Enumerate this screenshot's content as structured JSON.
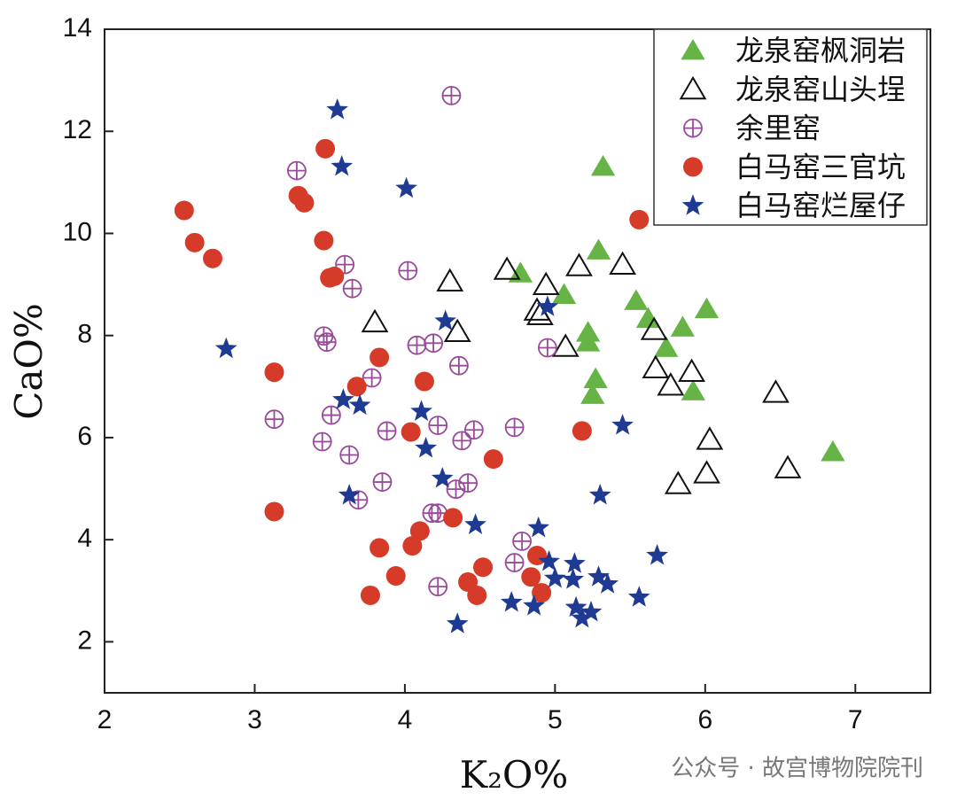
{
  "chart_data": {
    "type": "scatter",
    "xlabel": "K₂O%",
    "ylabel": "CaO%",
    "watermark": "公众号 · 故宫博物院院刊",
    "xlim": [
      2,
      7.5
    ],
    "xticks": [
      2,
      3,
      4,
      5,
      6,
      7
    ],
    "ylim": [
      1,
      14
    ],
    "yticks": [
      2,
      4,
      6,
      8,
      10,
      12,
      14
    ],
    "legend": "upper right",
    "series": [
      {
        "name": "龙泉窑枫洞岩",
        "color": "#67b446",
        "marker": "triangle",
        "x": [
          5.32,
          5.29,
          4.77,
          5.06,
          5.54,
          5.62,
          6.01,
          5.85,
          5.22,
          5.22,
          5.74,
          5.27,
          5.25,
          5.92,
          6.85
        ],
        "values": [
          11.31,
          9.67,
          9.22,
          8.8,
          8.68,
          8.33,
          8.52,
          8.16,
          8.06,
          7.87,
          7.76,
          7.15,
          6.84,
          6.91,
          5.72
        ]
      },
      {
        "name": "龙泉窑山头埕",
        "color": "#111111",
        "marker": "triangle-open",
        "x": [
          4.68,
          5.16,
          5.45,
          4.3,
          4.94,
          4.88,
          4.9,
          3.8,
          4.35,
          5.07,
          5.66,
          5.67,
          5.91,
          5.77,
          6.47,
          6.03,
          6.55,
          6.01,
          5.82
        ],
        "values": [
          9.29,
          9.36,
          9.39,
          9.06,
          8.99,
          8.49,
          8.4,
          8.26,
          8.07,
          7.78,
          8.11,
          7.36,
          7.29,
          7.02,
          6.88,
          5.96,
          5.4,
          5.3,
          5.09
        ]
      },
      {
        "name": "余里窑",
        "color": "#9a4a9a",
        "marker": "circle-plus",
        "x": [
          4.31,
          3.28,
          3.6,
          4.02,
          3.65,
          3.46,
          3.48,
          4.08,
          4.19,
          4.95,
          4.36,
          3.78,
          3.13,
          3.51,
          4.22,
          3.88,
          4.46,
          4.73,
          4.38,
          3.45,
          3.63,
          3.85,
          4.42,
          4.34,
          3.69,
          4.18,
          4.22,
          4.78,
          4.73,
          4.22
        ],
        "values": [
          12.7,
          11.23,
          9.39,
          9.27,
          8.92,
          7.99,
          7.87,
          7.81,
          7.85,
          7.76,
          7.41,
          7.17,
          6.36,
          6.44,
          6.24,
          6.13,
          6.15,
          6.2,
          5.94,
          5.92,
          5.66,
          5.13,
          5.11,
          4.99,
          4.78,
          4.52,
          4.52,
          3.97,
          3.55,
          3.08
        ]
      },
      {
        "name": "白马窑三官坑",
        "color": "#d63a28",
        "marker": "circle",
        "x": [
          2.53,
          3.47,
          3.29,
          3.33,
          2.6,
          2.72,
          3.46,
          3.53,
          3.5,
          5.56,
          3.13,
          3.83,
          3.68,
          4.13,
          4.04,
          5.18,
          4.59,
          3.13,
          4.32,
          4.1,
          3.83,
          4.05,
          4.88,
          4.52,
          3.94,
          4.84,
          4.42,
          4.91,
          3.77,
          4.48
        ],
        "values": [
          10.45,
          11.66,
          10.74,
          10.6,
          9.82,
          9.51,
          9.86,
          9.16,
          9.13,
          10.27,
          7.28,
          7.57,
          7.0,
          7.1,
          6.11,
          6.13,
          5.58,
          4.55,
          4.43,
          4.17,
          3.84,
          3.88,
          3.69,
          3.46,
          3.29,
          3.27,
          3.17,
          2.96,
          2.91,
          2.91
        ]
      },
      {
        "name": "白马窑烂屋仔",
        "color": "#1f3a92",
        "marker": "star",
        "x": [
          3.55,
          3.58,
          4.01,
          2.81,
          4.27,
          4.95,
          3.59,
          3.7,
          4.11,
          4.14,
          5.45,
          4.25,
          5.3,
          3.63,
          4.47,
          4.89,
          5.68,
          4.96,
          5.13,
          5.0,
          5.12,
          5.29,
          5.35,
          4.71,
          4.86,
          5.14,
          5.24,
          5.18,
          5.56,
          4.35
        ],
        "values": [
          12.42,
          11.31,
          10.88,
          7.74,
          8.28,
          8.56,
          6.74,
          6.63,
          6.51,
          5.79,
          6.24,
          5.2,
          4.87,
          4.87,
          4.29,
          4.23,
          3.69,
          3.57,
          3.53,
          3.24,
          3.22,
          3.27,
          3.13,
          2.77,
          2.7,
          2.67,
          2.58,
          2.46,
          2.87,
          2.35
        ]
      }
    ]
  }
}
